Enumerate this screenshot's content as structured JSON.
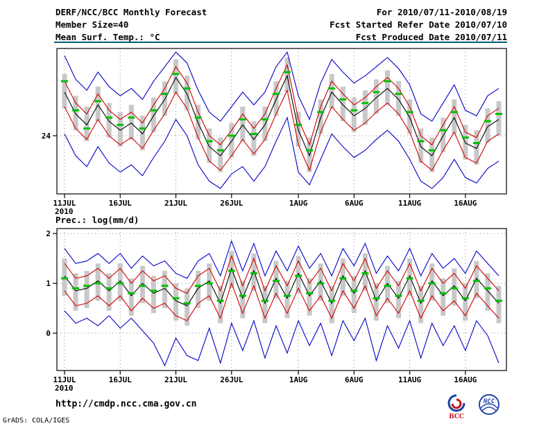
{
  "header": {
    "title": "DERF/NCC/BCC Monthly Forecast",
    "member_size": "Member Size=40",
    "for_range": "For 2010/07/11-2010/08/19",
    "fcst_started": "Fcst Started Refer Date 2010/07/10",
    "fcst_produced": "Fcst Produced Date 2010/07/11"
  },
  "footer": {
    "url": "http://cmdp.ncc.cma.gov.cn",
    "grads_credit": "GrADS: COLA/IGES",
    "logos": [
      {
        "name": "bcc-logo",
        "label": "BCC"
      },
      {
        "name": "ncc-logo",
        "label": "NCC"
      }
    ]
  },
  "colors": {
    "separator": "#00607a",
    "grid": "#8a8a8a",
    "frame": "#000000",
    "bar": "#c8c8c8",
    "green": "#00c000",
    "red": "#d00000",
    "blue": "#0000c8",
    "black": "#000000"
  },
  "chart_data": [
    {
      "type": "line",
      "title": "Mean Surf. Temp.: °C",
      "year_label": "2010",
      "n_points": 40,
      "x_tick_labels": [
        "11JUL",
        "16JUL",
        "21JUL",
        "26JUL",
        "1AUG",
        "6AUG",
        "11AUG",
        "16AUG"
      ],
      "x_tick_positions": [
        0,
        5,
        10,
        15,
        21,
        26,
        31,
        36
      ],
      "yticks": [
        24
      ],
      "ytick_labels": [
        "24"
      ],
      "ylim": [
        20.8,
        28.8
      ],
      "series": [
        {
          "name": "ensemble-max",
          "color": "#0000c8",
          "style": "line",
          "values": [
            28.4,
            27.1,
            26.5,
            27.5,
            26.7,
            26.2,
            26.6,
            26.0,
            27.0,
            27.8,
            28.6,
            28.0,
            26.5,
            25.3,
            24.8,
            25.6,
            26.4,
            25.7,
            26.4,
            27.8,
            28.6,
            26.2,
            24.9,
            26.9,
            28.2,
            27.5,
            26.9,
            27.3,
            27.8,
            28.3,
            27.7,
            26.8,
            25.2,
            24.8,
            25.8,
            26.8,
            25.4,
            25.1,
            26.2,
            26.6
          ]
        },
        {
          "name": "ensemble-min",
          "color": "#0000c8",
          "style": "line",
          "values": [
            24.1,
            22.9,
            22.3,
            23.4,
            22.5,
            22.0,
            22.4,
            21.8,
            22.8,
            23.7,
            24.9,
            24.0,
            22.4,
            21.5,
            21.1,
            21.9,
            22.3,
            21.5,
            22.3,
            23.7,
            25.0,
            22.0,
            21.3,
            22.7,
            24.1,
            23.4,
            22.8,
            23.2,
            23.8,
            24.3,
            23.7,
            22.7,
            21.5,
            21.1,
            21.7,
            22.7,
            21.7,
            21.4,
            22.2,
            22.6
          ]
        },
        {
          "name": "mean-plus-spread",
          "color": "#d00000",
          "style": "line",
          "values": [
            27.0,
            25.8,
            25.2,
            26.3,
            25.4,
            24.9,
            25.3,
            24.7,
            25.7,
            26.6,
            27.8,
            26.9,
            25.3,
            24.0,
            23.5,
            24.3,
            25.2,
            24.4,
            25.2,
            26.6,
            27.9,
            24.9,
            23.5,
            25.6,
            27.0,
            26.3,
            25.7,
            26.1,
            26.7,
            27.2,
            26.6,
            25.6,
            24.0,
            23.5,
            24.6,
            25.6,
            24.2,
            23.9,
            25.1,
            25.5
          ]
        },
        {
          "name": "mean-minus-spread",
          "color": "#d00000",
          "style": "line",
          "values": [
            25.6,
            24.4,
            23.8,
            24.9,
            24.0,
            23.5,
            23.9,
            23.3,
            24.3,
            25.2,
            26.4,
            25.5,
            23.9,
            22.6,
            22.1,
            22.9,
            23.8,
            23.0,
            23.8,
            25.2,
            26.5,
            23.5,
            22.1,
            24.2,
            25.6,
            24.9,
            24.3,
            24.7,
            25.3,
            25.8,
            25.2,
            24.2,
            22.6,
            22.1,
            23.2,
            24.2,
            22.8,
            22.5,
            23.7,
            24.1
          ]
        },
        {
          "name": "ensemble-mean",
          "color": "#000000",
          "style": "line",
          "values": [
            26.4,
            25.2,
            24.6,
            25.7,
            24.8,
            24.3,
            24.7,
            24.1,
            25.1,
            26.0,
            27.2,
            26.3,
            24.7,
            23.4,
            22.9,
            23.7,
            24.6,
            23.8,
            24.6,
            26.0,
            27.3,
            24.3,
            22.9,
            25.0,
            26.4,
            25.7,
            25.1,
            25.5,
            26.1,
            26.6,
            26.0,
            25.0,
            23.4,
            22.9,
            24.0,
            25.0,
            23.6,
            23.3,
            24.5,
            24.9
          ]
        },
        {
          "name": "observation",
          "color": "#00c000",
          "style": "dash",
          "values": [
            27.0,
            25.4,
            24.4,
            25.9,
            25.0,
            24.6,
            25.0,
            24.4,
            25.4,
            26.3,
            27.4,
            26.6,
            25.0,
            23.7,
            23.2,
            24.0,
            24.9,
            24.1,
            24.9,
            26.3,
            27.5,
            24.6,
            23.2,
            25.3,
            26.6,
            26.0,
            25.4,
            25.8,
            26.4,
            27.0,
            26.3,
            25.3,
            23.7,
            23.2,
            24.3,
            25.3,
            23.9,
            23.6,
            24.8,
            25.2
          ]
        },
        {
          "name": "member-spread",
          "color": "#c8c8c8",
          "style": "bar-range",
          "high": [
            27.4,
            26.2,
            25.6,
            26.7,
            25.8,
            25.3,
            25.7,
            25.1,
            26.1,
            27.0,
            28.2,
            27.3,
            25.7,
            24.4,
            23.9,
            24.7,
            25.6,
            24.8,
            25.6,
            27.0,
            28.3,
            25.3,
            23.9,
            26.0,
            27.4,
            26.7,
            26.1,
            26.5,
            27.1,
            27.6,
            27.0,
            26.0,
            24.4,
            23.9,
            25.0,
            26.0,
            24.6,
            24.3,
            25.5,
            25.9
          ],
          "low": [
            25.5,
            24.3,
            23.7,
            24.8,
            23.9,
            23.4,
            23.8,
            23.2,
            24.2,
            25.1,
            26.3,
            25.4,
            23.8,
            22.5,
            22.0,
            22.8,
            23.7,
            22.9,
            23.7,
            25.1,
            26.4,
            23.4,
            22.0,
            24.1,
            25.5,
            24.8,
            24.2,
            24.6,
            25.2,
            25.7,
            25.1,
            24.1,
            22.5,
            22.0,
            23.1,
            24.1,
            22.7,
            22.4,
            23.6,
            24.0
          ]
        }
      ]
    },
    {
      "type": "line",
      "title": "Prec.: log(mm/d)",
      "year_label": "2010",
      "n_points": 40,
      "x_tick_labels": [
        "11JUL",
        "16JUL",
        "21JUL",
        "26JUL",
        "1AUG",
        "6AUG",
        "11AUG",
        "16AUG"
      ],
      "x_tick_positions": [
        0,
        5,
        10,
        15,
        21,
        26,
        31,
        36
      ],
      "yticks": [
        0,
        1,
        2
      ],
      "ytick_labels": [
        "0",
        "1",
        "2"
      ],
      "ylim": [
        -0.75,
        2.1
      ],
      "series": [
        {
          "name": "ensemble-max",
          "color": "#0000c8",
          "style": "line",
          "values": [
            1.7,
            1.4,
            1.45,
            1.6,
            1.4,
            1.6,
            1.3,
            1.55,
            1.35,
            1.45,
            1.2,
            1.1,
            1.45,
            1.6,
            1.15,
            1.85,
            1.25,
            1.8,
            1.15,
            1.65,
            1.25,
            1.75,
            1.3,
            1.6,
            1.15,
            1.7,
            1.35,
            1.8,
            1.2,
            1.55,
            1.25,
            1.7,
            1.15,
            1.6,
            1.3,
            1.5,
            1.2,
            1.65,
            1.4,
            1.15
          ]
        },
        {
          "name": "ensemble-min",
          "color": "#0000c8",
          "style": "line",
          "values": [
            0.45,
            0.2,
            0.3,
            0.15,
            0.35,
            0.1,
            0.3,
            0.05,
            -0.2,
            -0.65,
            -0.1,
            -0.45,
            -0.55,
            0.1,
            -0.6,
            0.2,
            -0.35,
            0.25,
            -0.5,
            0.15,
            -0.4,
            0.25,
            -0.25,
            0.2,
            -0.45,
            0.25,
            -0.15,
            0.3,
            -0.55,
            0.15,
            -0.3,
            0.25,
            -0.5,
            0.2,
            -0.25,
            0.15,
            -0.35,
            0.25,
            -0.05,
            -0.6
          ]
        },
        {
          "name": "mean-plus-spread",
          "color": "#d00000",
          "style": "line",
          "values": [
            1.4,
            1.1,
            1.15,
            1.3,
            1.1,
            1.3,
            1.0,
            1.25,
            1.05,
            1.15,
            0.9,
            0.8,
            1.15,
            1.3,
            0.85,
            1.55,
            0.95,
            1.5,
            0.85,
            1.35,
            0.95,
            1.45,
            1.0,
            1.3,
            0.85,
            1.4,
            1.05,
            1.5,
            0.9,
            1.25,
            0.95,
            1.4,
            0.85,
            1.3,
            1.0,
            1.2,
            0.9,
            1.35,
            1.1,
            0.85
          ]
        },
        {
          "name": "mean-minus-spread",
          "color": "#d00000",
          "style": "line",
          "values": [
            0.85,
            0.55,
            0.6,
            0.75,
            0.55,
            0.75,
            0.45,
            0.7,
            0.5,
            0.6,
            0.35,
            0.25,
            0.6,
            0.75,
            0.3,
            1.0,
            0.4,
            0.95,
            0.3,
            0.8,
            0.4,
            0.9,
            0.45,
            0.75,
            0.3,
            0.85,
            0.5,
            0.95,
            0.35,
            0.7,
            0.4,
            0.85,
            0.3,
            0.75,
            0.45,
            0.65,
            0.35,
            0.8,
            0.55,
            0.3
          ]
        },
        {
          "name": "ensemble-mean",
          "color": "#000000",
          "style": "line",
          "values": [
            1.15,
            0.85,
            0.9,
            1.05,
            0.85,
            1.05,
            0.75,
            1.0,
            0.8,
            0.9,
            0.65,
            0.55,
            0.9,
            1.05,
            0.6,
            1.3,
            0.7,
            1.25,
            0.6,
            1.1,
            0.7,
            1.2,
            0.75,
            1.05,
            0.6,
            1.15,
            0.8,
            1.25,
            0.65,
            1.0,
            0.7,
            1.15,
            0.6,
            1.05,
            0.75,
            0.95,
            0.65,
            1.1,
            0.85,
            0.6
          ]
        },
        {
          "name": "observation",
          "color": "#00c000",
          "style": "dash",
          "values": [
            1.1,
            0.9,
            0.95,
            1.0,
            0.9,
            1.0,
            0.8,
            0.95,
            0.85,
            0.95,
            0.7,
            0.6,
            0.95,
            1.0,
            0.65,
            1.25,
            0.75,
            1.2,
            0.65,
            1.05,
            0.75,
            1.15,
            0.8,
            1.0,
            0.65,
            1.1,
            0.85,
            1.2,
            0.7,
            0.95,
            0.75,
            1.1,
            0.65,
            1.0,
            0.8,
            0.9,
            0.7,
            1.05,
            0.9,
            0.65
          ]
        },
        {
          "name": "member-spread",
          "color": "#c8c8c8",
          "style": "bar-range",
          "high": [
            1.5,
            1.2,
            1.25,
            1.4,
            1.2,
            1.4,
            1.1,
            1.35,
            1.15,
            1.25,
            1.0,
            0.9,
            1.25,
            1.4,
            0.95,
            1.65,
            1.05,
            1.6,
            0.95,
            1.45,
            1.05,
            1.55,
            1.1,
            1.4,
            0.95,
            1.5,
            1.15,
            1.6,
            1.0,
            1.35,
            1.05,
            1.5,
            0.95,
            1.4,
            1.1,
            1.3,
            1.0,
            1.45,
            1.2,
            0.95
          ],
          "low": [
            0.75,
            0.45,
            0.5,
            0.65,
            0.45,
            0.65,
            0.35,
            0.6,
            0.4,
            0.5,
            0.25,
            0.15,
            0.5,
            0.65,
            0.2,
            0.9,
            0.3,
            0.85,
            0.2,
            0.7,
            0.3,
            0.8,
            0.35,
            0.65,
            0.2,
            0.75,
            0.4,
            0.85,
            0.25,
            0.6,
            0.3,
            0.75,
            0.2,
            0.65,
            0.35,
            0.55,
            0.25,
            0.7,
            0.45,
            0.2
          ]
        }
      ]
    }
  ]
}
